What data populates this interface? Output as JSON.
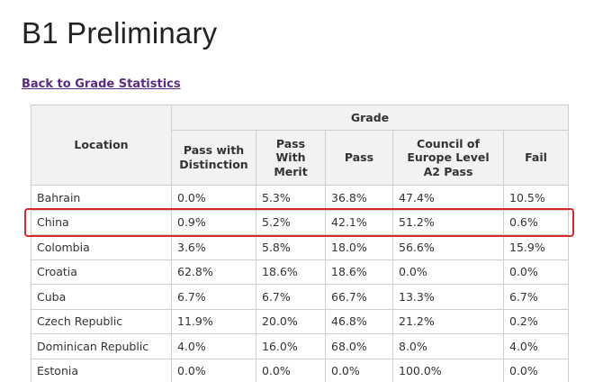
{
  "title": "B1 Preliminary",
  "back_link": "Back to Grade Statistics",
  "table": {
    "location_header": "Location",
    "grade_header": "Grade",
    "columns": [
      [
        "Pass with",
        "Distinction"
      ],
      [
        "Pass",
        "With",
        "Merit"
      ],
      [
        "Pass"
      ],
      [
        "Council of",
        "Europe Level",
        "A2 Pass"
      ],
      [
        "Fail"
      ]
    ],
    "rows": [
      {
        "location": "Bahrain",
        "values": [
          "0.0%",
          "5.3%",
          "36.8%",
          "47.4%",
          "10.5%"
        ]
      },
      {
        "location": "China",
        "values": [
          "0.9%",
          "5.2%",
          "42.1%",
          "51.2%",
          "0.6%"
        ]
      },
      {
        "location": "Colombia",
        "values": [
          "3.6%",
          "5.8%",
          "18.0%",
          "56.6%",
          "15.9%"
        ]
      },
      {
        "location": "Croatia",
        "values": [
          "62.8%",
          "18.6%",
          "18.6%",
          "0.0%",
          "0.0%"
        ]
      },
      {
        "location": "Cuba",
        "values": [
          "6.7%",
          "6.7%",
          "66.7%",
          "13.3%",
          "6.7%"
        ]
      },
      {
        "location": "Czech Republic",
        "values": [
          "11.9%",
          "20.0%",
          "46.8%",
          "21.2%",
          "0.2%"
        ]
      },
      {
        "location": "Dominican Republic",
        "values": [
          "4.0%",
          "16.0%",
          "68.0%",
          "8.0%",
          "4.0%"
        ]
      },
      {
        "location": "Estonia",
        "values": [
          "0.0%",
          "0.0%",
          "0.0%",
          "100.0%",
          "0.0%"
        ]
      }
    ]
  },
  "highlight": {
    "location": "China",
    "color": "#d62b2b"
  }
}
